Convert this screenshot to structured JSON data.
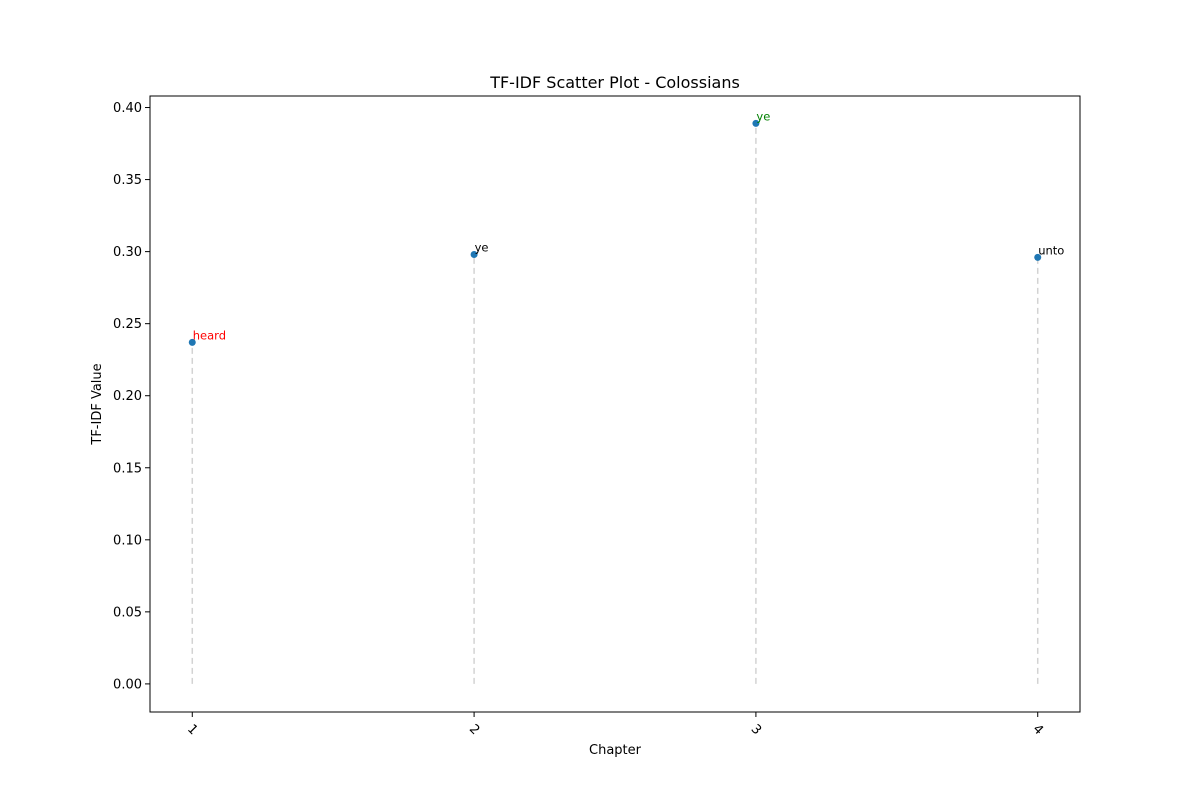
{
  "chart_data": {
    "type": "scatter",
    "title": "TF-IDF Scatter Plot - Colossians",
    "xlabel": "Chapter",
    "ylabel": "TF-IDF Value",
    "x_ticks": [
      "1",
      "2",
      "3",
      "4"
    ],
    "y_ticks": [
      "0.00",
      "0.05",
      "0.10",
      "0.15",
      "0.20",
      "0.25",
      "0.30",
      "0.35",
      "0.40"
    ],
    "xlim": [
      0.85,
      4.15
    ],
    "ylim": [
      -0.0195,
      0.408
    ],
    "grid": false,
    "stems": true,
    "marker_color": "#1f77b4",
    "stem_color": "#d3d3d3",
    "points": [
      {
        "x": 1,
        "y": 0.237,
        "label": "heard",
        "label_color": "#ff0000"
      },
      {
        "x": 2,
        "y": 0.298,
        "label": "ye",
        "label_color": "#000000"
      },
      {
        "x": 3,
        "y": 0.389,
        "label": "ye",
        "label_color": "#008000"
      },
      {
        "x": 4,
        "y": 0.296,
        "label": "unto",
        "label_color": "#000000"
      }
    ]
  }
}
